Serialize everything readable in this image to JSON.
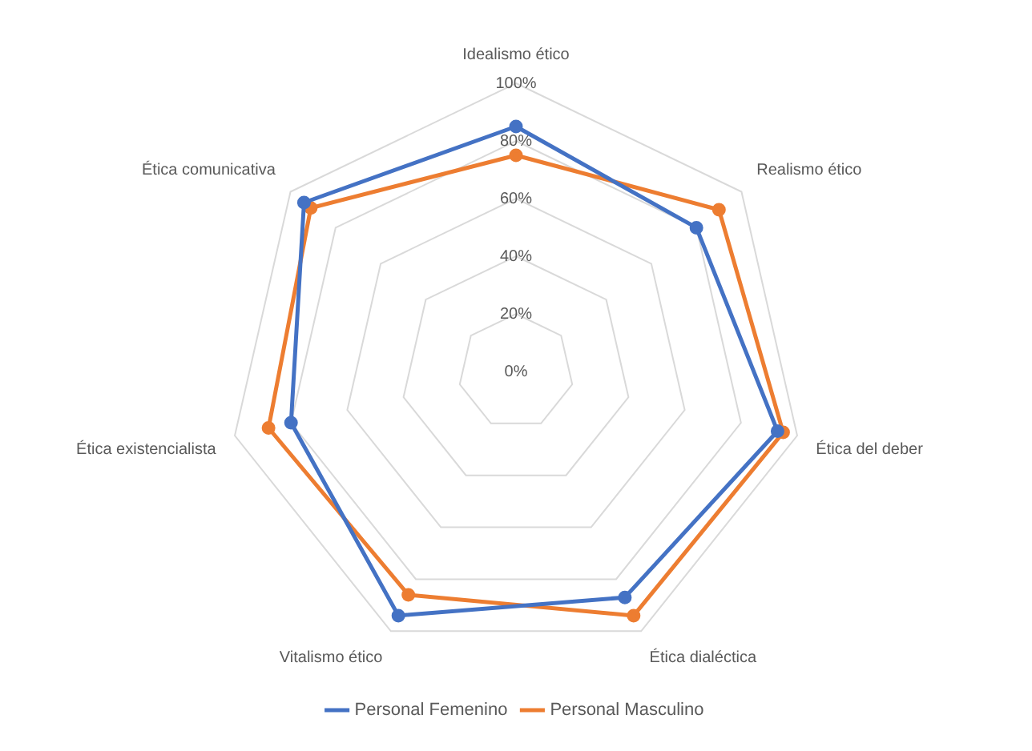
{
  "chart_data": {
    "type": "radar",
    "categories": [
      "Idealismo ético",
      "Realismo ético",
      "Ética del deber",
      "Ética dialéctica",
      "Vitalismo ético",
      "Ética existencialista",
      "Ética comunicativa"
    ],
    "series": [
      {
        "name": "Personal Femenino",
        "color": "#4472c4",
        "values": [
          85,
          80,
          93,
          87,
          94,
          80,
          94
        ]
      },
      {
        "name": "Personal Masculino",
        "color": "#ed7d31",
        "values": [
          75,
          90,
          95,
          94,
          86,
          88,
          91
        ]
      }
    ],
    "ylim": [
      0,
      100
    ],
    "yticks": [
      {
        "value": 0,
        "label": "0%"
      },
      {
        "value": 20,
        "label": "20%"
      },
      {
        "value": 40,
        "label": "40%"
      },
      {
        "value": 60,
        "label": "60%"
      },
      {
        "value": 80,
        "label": "80%"
      },
      {
        "value": 100,
        "label": "100%"
      }
    ],
    "grid": true,
    "legend": "bottom",
    "marker": "circle"
  }
}
